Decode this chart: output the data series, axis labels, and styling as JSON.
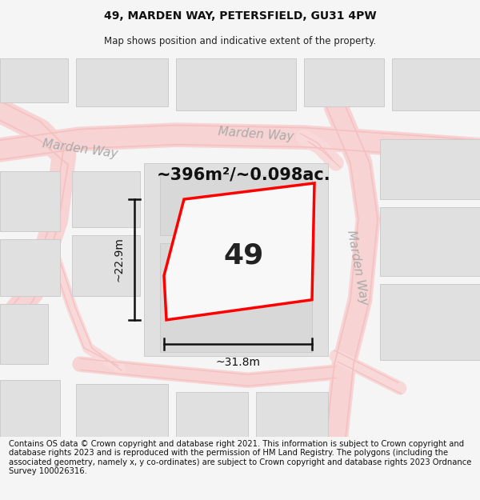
{
  "title": "49, MARDEN WAY, PETERSFIELD, GU31 4PW",
  "subtitle": "Map shows position and indicative extent of the property.",
  "footer": "Contains OS data © Crown copyright and database right 2021. This information is subject to Crown copyright and database rights 2023 and is reproduced with the permission of HM Land Registry. The polygons (including the associated geometry, namely x, y co-ordinates) are subject to Crown copyright and database rights 2023 Ordnance Survey 100026316.",
  "area_label": "~396m²/~0.098ac.",
  "property_number": "49",
  "width_label": "~31.8m",
  "height_label": "~22.9m",
  "road_label_topleft": "Marden Way",
  "road_label_top": "Marden Way",
  "road_label_right": "Marden Way",
  "road_color": "#f5c0c0",
  "road_fill": "#fae8e8",
  "building_color": "#e0e0e0",
  "building_edge": "#cccccc",
  "plot_color": "#ff0000",
  "plot_fill": "#ffffff",
  "dim_color": "#111111",
  "bg_color": "#f5f5f5",
  "map_bg": "#ffffff",
  "title_fontsize": 10,
  "subtitle_fontsize": 8.5,
  "footer_fontsize": 7.2,
  "label_color": "#aaaaaa"
}
